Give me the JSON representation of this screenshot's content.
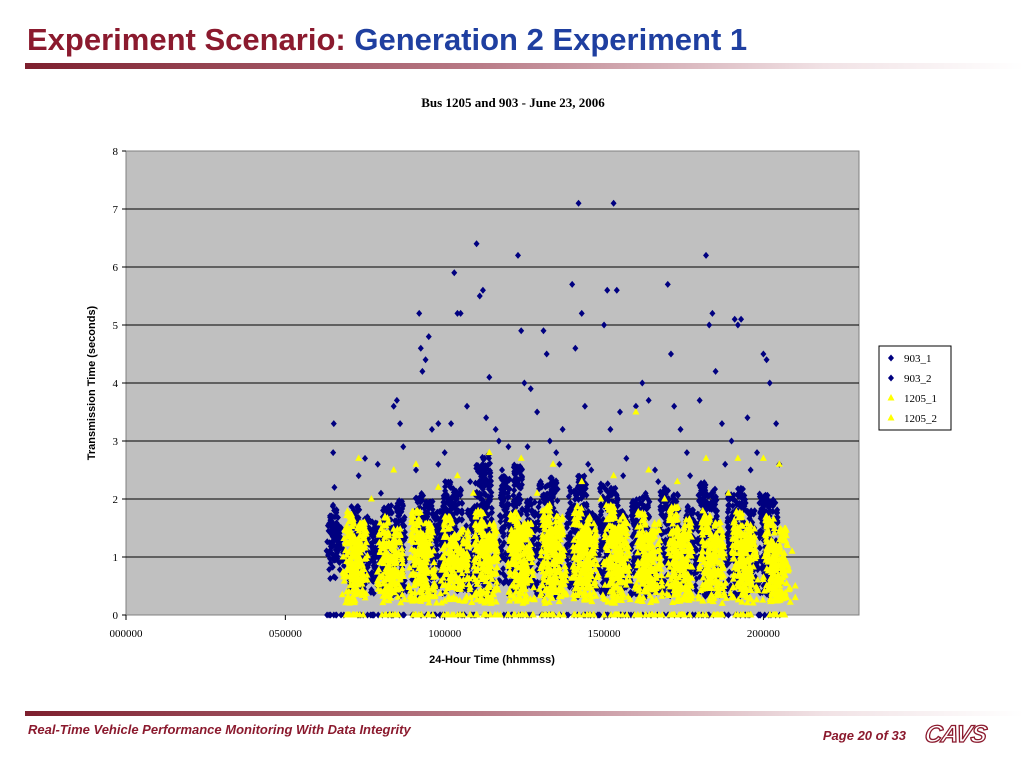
{
  "slide": {
    "title_prefix": "Experiment Scenario:",
    "title_main": "Generation 2 Experiment 1",
    "footer_left": "Real-Time Vehicle Performance Monitoring With Data Integrity",
    "footer_page": "Page 20 of 33",
    "logo_text": "CAVS",
    "colors": {
      "title_maroon": "#8b1a2e",
      "title_blue": "#1f3fa0"
    }
  },
  "chart_data": {
    "type": "scatter",
    "title": "Bus 1205 and 903 - June 23, 2006",
    "xlabel": "24-Hour Time (hhmmss)",
    "ylabel": "Transmission Time (seconds)",
    "xlim": [
      0,
      230000
    ],
    "ylim": [
      0,
      8
    ],
    "x_ticks": [
      "000000",
      "050000",
      "100000",
      "150000",
      "200000"
    ],
    "x_tick_values": [
      0,
      50000,
      100000,
      150000,
      200000
    ],
    "y_ticks": [
      "0",
      "1",
      "2",
      "3",
      "4",
      "5",
      "6",
      "7",
      "8"
    ],
    "grid": "horizontal",
    "plot_background": "#c0c0c0",
    "legend_position": "right",
    "series": [
      {
        "name": "903_1",
        "marker": "diamond",
        "color": "#000080",
        "points": [
          [
            65000,
            2.8
          ],
          [
            65200,
            3.3
          ],
          [
            65400,
            2.2
          ],
          [
            65100,
            1.5
          ],
          [
            65300,
            1.0
          ],
          [
            73000,
            2.4
          ],
          [
            75000,
            2.7
          ],
          [
            79000,
            2.6
          ],
          [
            84000,
            3.6
          ],
          [
            85000,
            3.7
          ],
          [
            86000,
            3.3
          ],
          [
            87000,
            2.9
          ],
          [
            92000,
            5.2
          ],
          [
            92500,
            4.6
          ],
          [
            93000,
            4.2
          ],
          [
            94000,
            4.4
          ],
          [
            95000,
            4.8
          ],
          [
            96000,
            3.2
          ],
          [
            98000,
            3.3
          ],
          [
            100000,
            2.8
          ],
          [
            102000,
            3.3
          ],
          [
            103000,
            5.9
          ],
          [
            104000,
            5.2
          ],
          [
            105000,
            5.2
          ],
          [
            107000,
            3.6
          ],
          [
            110000,
            6.4
          ],
          [
            111000,
            5.5
          ],
          [
            112000,
            5.6
          ],
          [
            113000,
            3.4
          ],
          [
            114000,
            4.1
          ],
          [
            116000,
            3.2
          ],
          [
            117000,
            3.0
          ],
          [
            120000,
            2.9
          ],
          [
            123000,
            6.2
          ],
          [
            124000,
            4.9
          ],
          [
            125000,
            4.0
          ],
          [
            127000,
            3.9
          ],
          [
            129000,
            3.5
          ],
          [
            131000,
            4.9
          ],
          [
            132000,
            4.5
          ],
          [
            133000,
            3.0
          ],
          [
            135000,
            2.8
          ],
          [
            137000,
            3.2
          ],
          [
            140000,
            5.7
          ],
          [
            141000,
            4.6
          ],
          [
            142000,
            7.1
          ],
          [
            143000,
            5.2
          ],
          [
            144000,
            3.6
          ],
          [
            145000,
            2.6
          ],
          [
            150000,
            5.0
          ],
          [
            151000,
            5.6
          ],
          [
            152000,
            3.2
          ],
          [
            153000,
            7.1
          ],
          [
            154000,
            5.6
          ],
          [
            155000,
            3.5
          ],
          [
            157000,
            2.7
          ],
          [
            160000,
            3.6
          ],
          [
            162000,
            4.0
          ],
          [
            164000,
            3.7
          ],
          [
            166000,
            2.5
          ],
          [
            170000,
            5.7
          ],
          [
            171000,
            4.5
          ],
          [
            172000,
            3.6
          ],
          [
            174000,
            3.2
          ],
          [
            176000,
            2.8
          ],
          [
            180000,
            3.7
          ],
          [
            182000,
            6.2
          ],
          [
            183000,
            5.0
          ],
          [
            184000,
            5.2
          ],
          [
            185000,
            4.2
          ],
          [
            187000,
            3.3
          ],
          [
            190000,
            3.0
          ],
          [
            191000,
            5.1
          ],
          [
            192000,
            5.0
          ],
          [
            193000,
            5.1
          ],
          [
            195000,
            3.4
          ],
          [
            198000,
            2.8
          ],
          [
            200000,
            4.5
          ],
          [
            201000,
            4.4
          ],
          [
            202000,
            4.0
          ],
          [
            204000,
            3.3
          ],
          [
            205000,
            2.6
          ]
        ],
        "clusters": [
          [
            65000,
            0.6,
            1.9
          ],
          [
            72000,
            0.3,
            1.9
          ],
          [
            76000,
            0.3,
            1.7
          ],
          [
            82000,
            0.3,
            1.9
          ],
          [
            86000,
            0.3,
            2.0
          ],
          [
            92000,
            0.3,
            2.1
          ],
          [
            95000,
            0.3,
            2.0
          ],
          [
            101000,
            0.3,
            2.3
          ],
          [
            104000,
            0.3,
            2.2
          ],
          [
            111000,
            0.3,
            2.6
          ],
          [
            113000,
            0.3,
            2.8
          ],
          [
            119000,
            0.3,
            2.4
          ],
          [
            123000,
            0.3,
            2.6
          ],
          [
            131000,
            0.3,
            2.3
          ],
          [
            134000,
            0.3,
            2.4
          ],
          [
            140000,
            0.3,
            2.2
          ],
          [
            143000,
            0.3,
            2.4
          ],
          [
            150000,
            0.3,
            2.3
          ],
          [
            153000,
            0.3,
            2.2
          ],
          [
            160000,
            0.3,
            2.0
          ],
          [
            163000,
            0.3,
            2.1
          ],
          [
            169000,
            0.3,
            2.2
          ],
          [
            172000,
            0.3,
            2.1
          ],
          [
            181000,
            0.3,
            2.3
          ],
          [
            184000,
            0.3,
            2.2
          ],
          [
            190000,
            0.3,
            2.1
          ],
          [
            193000,
            0.3,
            2.2
          ],
          [
            200000,
            0.3,
            2.1
          ],
          [
            203000,
            0.3,
            2.0
          ]
        ]
      },
      {
        "name": "903_2",
        "marker": "diamond",
        "color": "#000080",
        "points": [
          [
            66000,
            1.8
          ],
          [
            80000,
            2.1
          ],
          [
            91000,
            2.5
          ],
          [
            98000,
            2.6
          ],
          [
            108000,
            2.3
          ],
          [
            118000,
            2.5
          ],
          [
            126000,
            2.9
          ],
          [
            136000,
            2.6
          ],
          [
            146000,
            2.5
          ],
          [
            156000,
            2.4
          ],
          [
            167000,
            2.3
          ],
          [
            177000,
            2.4
          ],
          [
            188000,
            2.6
          ],
          [
            196000,
            2.5
          ]
        ],
        "clusters": [
          [
            66000,
            0.8,
            1.6
          ],
          [
            79000,
            0.4,
            1.6
          ],
          [
            98000,
            0.4,
            1.8
          ],
          [
            108000,
            0.4,
            1.9
          ],
          [
            127000,
            0.4,
            2.0
          ],
          [
            146000,
            0.4,
            1.8
          ],
          [
            156000,
            0.4,
            1.8
          ],
          [
            177000,
            0.4,
            1.9
          ],
          [
            196000,
            0.4,
            1.8
          ]
        ]
      },
      {
        "name": "1205_1",
        "marker": "triangle",
        "color": "#ffff00",
        "points": [
          [
            73000,
            2.7
          ],
          [
            84000,
            2.5
          ],
          [
            91000,
            2.6
          ],
          [
            104000,
            2.4
          ],
          [
            114000,
            2.8
          ],
          [
            124000,
            2.7
          ],
          [
            134000,
            2.6
          ],
          [
            143000,
            2.3
          ],
          [
            153000,
            2.4
          ],
          [
            160000,
            3.5
          ],
          [
            164000,
            2.5
          ],
          [
            173000,
            2.3
          ],
          [
            182000,
            2.7
          ],
          [
            192000,
            2.7
          ],
          [
            200000,
            2.7
          ],
          [
            205000,
            2.6
          ],
          [
            209000,
            1.1
          ],
          [
            210000,
            0.5
          ],
          [
            210000,
            0.3
          ]
        ],
        "clusters": [
          [
            70000,
            0.2,
            1.8
          ],
          [
            74000,
            0.2,
            1.6
          ],
          [
            81000,
            0.2,
            1.7
          ],
          [
            85000,
            0.2,
            1.5
          ],
          [
            91000,
            0.2,
            1.8
          ],
          [
            95000,
            0.2,
            1.6
          ],
          [
            101000,
            0.2,
            1.7
          ],
          [
            106000,
            0.2,
            1.5
          ],
          [
            111000,
            0.2,
            1.8
          ],
          [
            115000,
            0.2,
            1.6
          ],
          [
            122000,
            0.2,
            1.8
          ],
          [
            126000,
            0.2,
            1.6
          ],
          [
            132000,
            0.2,
            1.9
          ],
          [
            136000,
            0.2,
            1.7
          ],
          [
            142000,
            0.2,
            1.9
          ],
          [
            146000,
            0.2,
            1.7
          ],
          [
            152000,
            0.2,
            1.9
          ],
          [
            156000,
            0.2,
            1.7
          ],
          [
            162000,
            0.2,
            1.8
          ],
          [
            166000,
            0.2,
            1.6
          ],
          [
            172000,
            0.2,
            1.9
          ],
          [
            176000,
            0.2,
            1.7
          ],
          [
            182000,
            0.2,
            1.8
          ],
          [
            186000,
            0.2,
            1.6
          ],
          [
            192000,
            0.2,
            1.8
          ],
          [
            196000,
            0.2,
            1.6
          ],
          [
            202000,
            0.2,
            1.7
          ],
          [
            206000,
            0.2,
            1.5
          ]
        ]
      },
      {
        "name": "1205_2",
        "marker": "triangle",
        "color": "#ffff00",
        "points": [
          [
            77000,
            2.0
          ],
          [
            98000,
            2.2
          ],
          [
            109000,
            2.1
          ],
          [
            129000,
            2.1
          ],
          [
            149000,
            2.0
          ],
          [
            169000,
            2.0
          ],
          [
            189000,
            2.1
          ]
        ],
        "clusters": [
          [
            72000,
            0.2,
            1.3
          ],
          [
            83000,
            0.2,
            1.3
          ],
          [
            93000,
            0.2,
            1.4
          ],
          [
            103000,
            0.2,
            1.4
          ],
          [
            113000,
            0.2,
            1.4
          ],
          [
            124000,
            0.2,
            1.5
          ],
          [
            134000,
            0.2,
            1.5
          ],
          [
            144000,
            0.2,
            1.5
          ],
          [
            154000,
            0.2,
            1.5
          ],
          [
            164000,
            0.2,
            1.4
          ],
          [
            174000,
            0.2,
            1.5
          ],
          [
            184000,
            0.2,
            1.4
          ],
          [
            194000,
            0.2,
            1.4
          ],
          [
            204000,
            0.2,
            1.3
          ]
        ]
      }
    ]
  }
}
